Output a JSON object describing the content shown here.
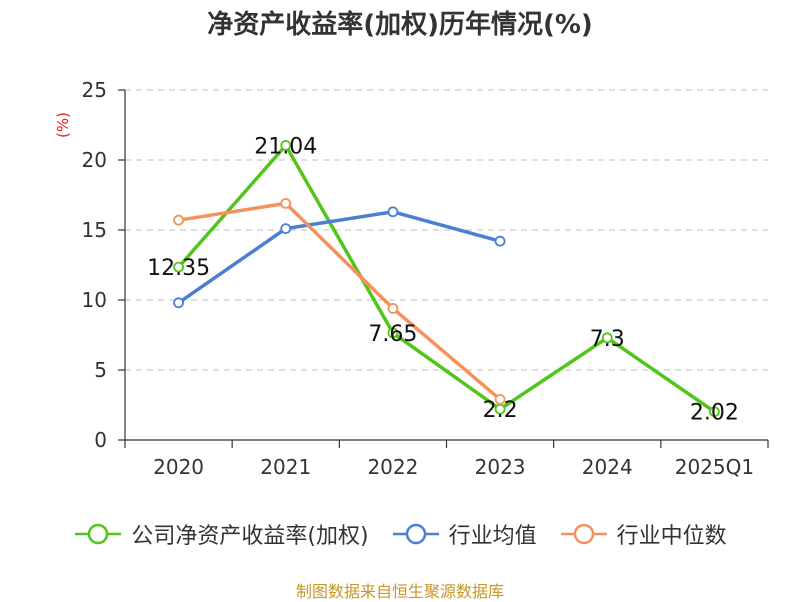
{
  "chart_data": {
    "type": "line",
    "title": "净资产收益率(加权)历年情况(%)",
    "ylabel": "(%)",
    "xlabel": "",
    "categories": [
      "2020",
      "2021",
      "2022",
      "2023",
      "2024",
      "2025Q1"
    ],
    "ylim": [
      0,
      25
    ],
    "yticks": [
      0,
      5,
      10,
      15,
      20,
      25
    ],
    "grid": true,
    "legend_position": "bottom",
    "series": [
      {
        "name": "公司净资产收益率(加权)",
        "color": "#52c41a",
        "values": [
          12.35,
          21.04,
          7.65,
          2.2,
          7.3,
          2.02
        ],
        "labels": [
          "12.35",
          "21.04",
          "7.65",
          "2.2",
          "7.3",
          "2.02"
        ]
      },
      {
        "name": "行业均值",
        "color": "#4a7fd4",
        "values": [
          9.8,
          15.1,
          16.3,
          14.2,
          null,
          null
        ]
      },
      {
        "name": "行业中位数",
        "color": "#f5925c",
        "values": [
          15.7,
          16.9,
          9.4,
          2.9,
          null,
          null
        ]
      }
    ]
  },
  "source_note": "制图数据来自恒生聚源数据库",
  "colors": {
    "axis": "#333333",
    "grid": "#cccccc",
    "ylabel": "#e02020",
    "source": "#c8962a"
  }
}
